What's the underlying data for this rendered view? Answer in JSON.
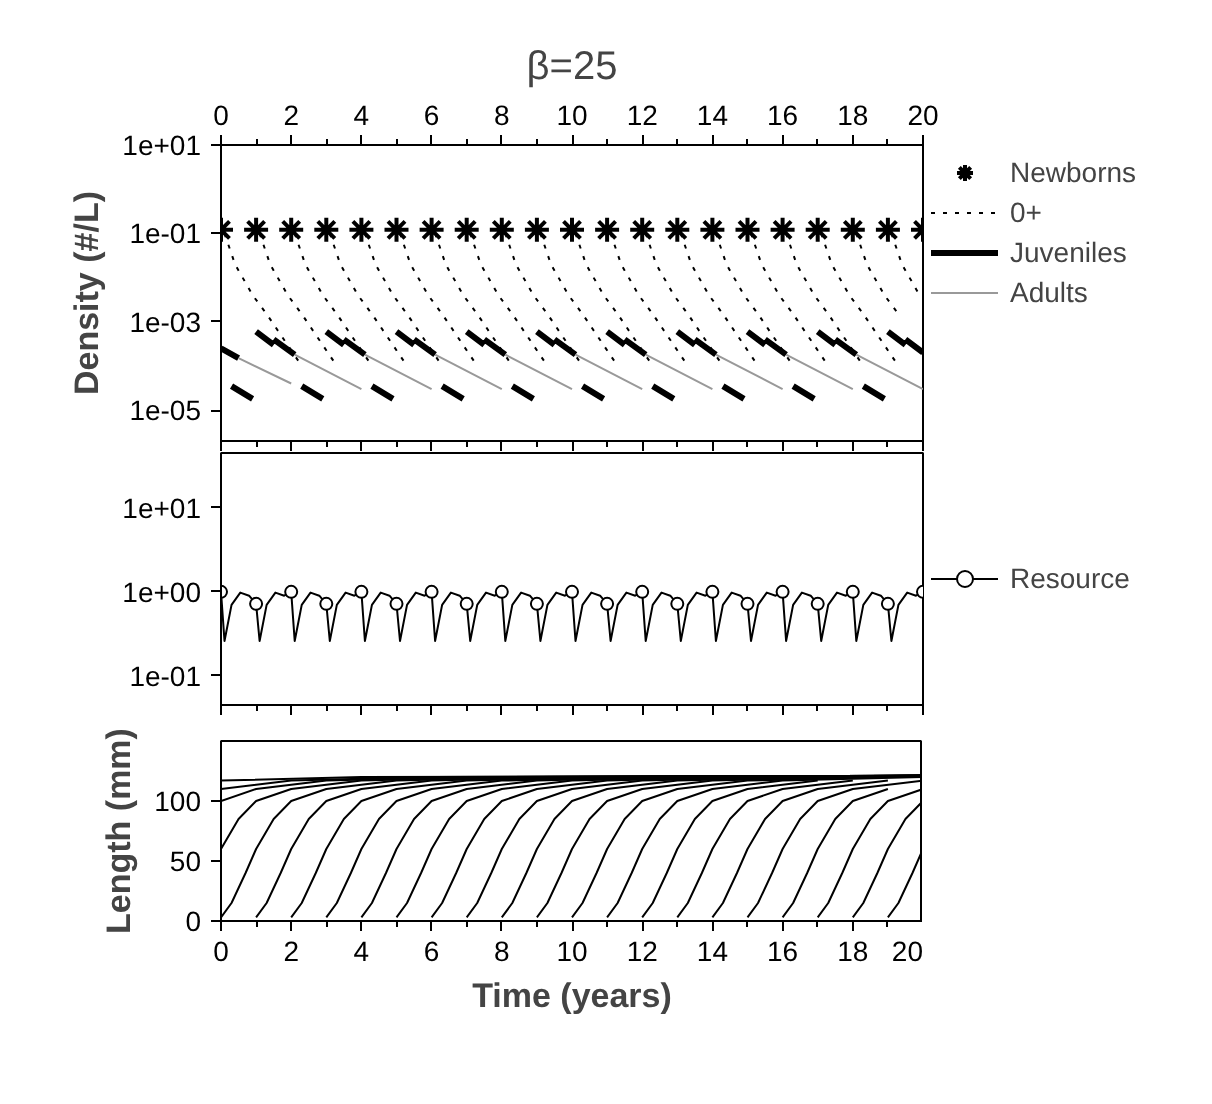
{
  "chart_data": [
    {
      "type": "line",
      "title": "β=25",
      "ylabel": "Density (#/L)",
      "log": "y",
      "legend": "right",
      "tick_labels": "y",
      "xlim": [
        0,
        20
      ],
      "xticks": [
        0,
        {
          "value": 1,
          "label": null
        },
        2,
        {
          "value": 3,
          "label": null
        },
        4,
        {
          "value": 5,
          "label": null
        },
        6,
        {
          "value": 7,
          "label": null
        },
        8,
        {
          "value": 9,
          "label": null
        },
        10,
        {
          "value": 11,
          "label": null
        },
        12,
        {
          "value": 13,
          "label": null
        },
        14,
        {
          "value": 15,
          "label": null
        },
        16,
        {
          "value": 17,
          "label": null
        },
        18,
        {
          "value": 19,
          "label": null
        },
        20
      ],
      "x2lim": [
        0,
        20
      ],
      "x2ticks": [
        0,
        {
          "value": 1,
          "label": null
        },
        2,
        {
          "value": 3,
          "label": null
        },
        4,
        {
          "value": 5,
          "label": null
        },
        6,
        {
          "value": 7,
          "label": null
        },
        8,
        {
          "value": 9,
          "label": null
        },
        10,
        {
          "value": 11,
          "label": null
        },
        12,
        {
          "value": 13,
          "label": null
        },
        14,
        {
          "value": 15,
          "label": null
        },
        16,
        {
          "value": 17,
          "label": null
        },
        18,
        {
          "value": 19,
          "label": null
        },
        20
      ],
      "ylim": [
        2e-06,
        10
      ],
      "yticks": [
        {
          "value": 10,
          "label": "1e+01"
        },
        {
          "value": 0.1,
          "label": "1e-01"
        },
        {
          "value": 0.001,
          "label": "1e-03"
        },
        {
          "value": 1e-05,
          "label": "1e-05"
        }
      ],
      "series": [
        {
          "name": "Newborns",
          "type": "scatter",
          "marker": "cross",
          "color": "#000000",
          "x": [
            0,
            1,
            2,
            3,
            4,
            5,
            6,
            7,
            8,
            9,
            10,
            11,
            12,
            13,
            14,
            15,
            16,
            17,
            18,
            19,
            20
          ],
          "values": [
            0.12,
            0.12,
            0.12,
            0.12,
            0.12,
            0.12,
            0.12,
            0.12,
            0.12,
            0.12,
            0.12,
            0.12,
            0.12,
            0.12,
            0.12,
            0.12,
            0.12,
            0.12,
            0.12,
            0.12,
            0.12
          ]
        },
        {
          "name": "0+",
          "type": "line",
          "line_style": "dotted",
          "color": "#000000",
          "x": [
            0.1,
            0.4,
            0.9,
            1.3,
            2.3,
            null,
            1.1,
            1.4,
            1.9,
            2.3,
            3.3,
            null,
            2.1,
            2.4,
            2.9,
            3.3,
            4.3,
            null,
            3.1,
            3.4,
            3.9,
            4.3,
            5.3,
            null,
            4.1,
            4.4,
            4.9,
            5.3,
            6.3,
            null,
            5.1,
            5.4,
            5.9,
            6.3,
            7.3,
            null,
            6.1,
            6.4,
            6.9,
            7.3,
            8.3,
            null,
            7.1,
            7.4,
            7.9,
            8.3,
            9.3,
            null,
            8.1,
            8.4,
            8.9,
            9.3,
            10.3,
            null,
            9.1,
            9.4,
            9.9,
            10.3,
            11.3,
            null,
            10.1,
            10.4,
            10.9,
            11.3,
            12.3,
            null,
            11.1,
            11.4,
            11.9,
            12.3,
            13.3,
            null,
            12.1,
            12.4,
            12.9,
            13.3,
            14.3,
            null,
            13.1,
            13.4,
            13.9,
            14.3,
            15.3,
            null,
            14.1,
            14.4,
            14.9,
            15.3,
            16.3,
            null,
            15.1,
            15.4,
            15.9,
            16.3,
            17.3,
            null,
            16.1,
            16.4,
            16.9,
            17.3,
            18.3,
            null,
            17.1,
            17.4,
            17.9,
            18.3,
            19.3,
            null,
            18.1,
            18.4,
            18.9,
            19.3,
            null,
            19.1,
            19.4,
            19.9
          ],
          "values": [
            0.1,
            0.02,
            0.004,
            0.0015,
            0.0001,
            null,
            0.1,
            0.02,
            0.004,
            0.0015,
            0.0001,
            null,
            0.1,
            0.02,
            0.004,
            0.0015,
            0.0001,
            null,
            0.1,
            0.02,
            0.004,
            0.0015,
            0.0001,
            null,
            0.1,
            0.02,
            0.004,
            0.0015,
            0.0001,
            null,
            0.1,
            0.02,
            0.004,
            0.0015,
            0.0001,
            null,
            0.1,
            0.02,
            0.004,
            0.0015,
            0.0001,
            null,
            0.1,
            0.02,
            0.004,
            0.0015,
            0.0001,
            null,
            0.1,
            0.02,
            0.004,
            0.0015,
            0.0001,
            null,
            0.1,
            0.02,
            0.004,
            0.0015,
            0.0001,
            null,
            0.1,
            0.02,
            0.004,
            0.0015,
            0.0001,
            null,
            0.1,
            0.02,
            0.004,
            0.0015,
            0.0001,
            null,
            0.1,
            0.02,
            0.004,
            0.0015,
            0.0001,
            null,
            0.1,
            0.02,
            0.004,
            0.0015,
            0.0001,
            null,
            0.1,
            0.02,
            0.004,
            0.0015,
            0.0001,
            null,
            0.1,
            0.02,
            0.004,
            0.0015,
            0.0001,
            null,
            0.1,
            0.02,
            0.004,
            0.0015,
            0.0001,
            null,
            0.1,
            0.02,
            0.004,
            0.0015,
            0.0001,
            null,
            0.1,
            0.02,
            0.004,
            0.0015,
            null,
            0.1,
            0.02,
            0.004
          ]
        },
        {
          "name": "Juveniles",
          "type": "line",
          "color": "#000000",
          "x": [
            0,
            0.5,
            null,
            1,
            1.5,
            null,
            1.5,
            2.1,
            null,
            3,
            3.5,
            null,
            3.5,
            4.1,
            null,
            5,
            5.5,
            null,
            5.5,
            6.1,
            null,
            7,
            7.5,
            null,
            7.5,
            8.1,
            null,
            9,
            9.5,
            null,
            9.5,
            10.1,
            null,
            11,
            11.5,
            null,
            11.5,
            12.1,
            null,
            13,
            13.5,
            null,
            13.5,
            14.1,
            null,
            15,
            15.5,
            null,
            15.5,
            16.1,
            null,
            17,
            17.5,
            null,
            17.5,
            18.1,
            null,
            19,
            19.5,
            null,
            19.5,
            20,
            null,
            0.3,
            0.9,
            null,
            2.3,
            2.9,
            null,
            4.3,
            4.9,
            null,
            6.3,
            6.9,
            null,
            8.3,
            8.9,
            null,
            10.3,
            10.9,
            null,
            12.3,
            12.9,
            null,
            14.3,
            14.9,
            null,
            16.3,
            16.9,
            null,
            18.3,
            18.9
          ],
          "values": [
            0.00025,
            0.00015,
            null,
            0.0006,
            0.0003,
            null,
            0.0004,
            0.00018,
            null,
            0.0006,
            0.0003,
            null,
            0.0004,
            0.00018,
            null,
            0.0006,
            0.0003,
            null,
            0.0004,
            0.00018,
            null,
            0.0006,
            0.0003,
            null,
            0.0004,
            0.00018,
            null,
            0.0006,
            0.0003,
            null,
            0.0004,
            0.00018,
            null,
            0.0006,
            0.0003,
            null,
            0.0004,
            0.00018,
            null,
            0.0006,
            0.0003,
            null,
            0.0004,
            0.00018,
            null,
            0.0006,
            0.0003,
            null,
            0.0004,
            0.00018,
            null,
            0.0006,
            0.0003,
            null,
            0.0004,
            0.00018,
            null,
            0.0006,
            0.0003,
            null,
            0.0004,
            0.0002,
            null,
            3.5e-05,
            1.8e-05,
            null,
            3.5e-05,
            1.8e-05,
            null,
            3.5e-05,
            1.8e-05,
            null,
            3.5e-05,
            1.8e-05,
            null,
            3.5e-05,
            1.8e-05,
            null,
            3.5e-05,
            1.8e-05,
            null,
            3.5e-05,
            1.8e-05,
            null,
            3.5e-05,
            1.8e-05,
            null,
            3.5e-05,
            1.8e-05,
            null,
            3.5e-05,
            1.8e-05
          ]
        },
        {
          "name": "Adults",
          "type": "line",
          "color": "#999999",
          "x": [
            0.5,
            2,
            null,
            2.1,
            4,
            null,
            4.1,
            6,
            null,
            6.1,
            8,
            null,
            8.1,
            10,
            null,
            10.1,
            12,
            null,
            12.1,
            14,
            null,
            14.1,
            16,
            null,
            16.1,
            18,
            null,
            18.1,
            20
          ],
          "values": [
            0.00015,
            4e-05,
            null,
            0.00018,
            3e-05,
            null,
            0.00018,
            3e-05,
            null,
            0.00018,
            3e-05,
            null,
            0.00018,
            3e-05,
            null,
            0.00018,
            3e-05,
            null,
            0.00018,
            3e-05,
            null,
            0.00018,
            3e-05,
            null,
            0.00018,
            3e-05,
            null,
            0.00018,
            3e-05
          ]
        }
      ]
    },
    {
      "type": "line",
      "log": "y",
      "legend": "right",
      "tick_labels": "y",
      "xlim": [
        0,
        20
      ],
      "xticks": [
        0,
        {
          "value": 1,
          "label": null
        },
        2,
        {
          "value": 3,
          "label": null
        },
        4,
        {
          "value": 5,
          "label": null
        },
        6,
        {
          "value": 7,
          "label": null
        },
        8,
        {
          "value": 9,
          "label": null
        },
        10,
        {
          "value": 11,
          "label": null
        },
        12,
        {
          "value": 13,
          "label": null
        },
        14,
        {
          "value": 15,
          "label": null
        },
        16,
        {
          "value": 17,
          "label": null
        },
        18,
        {
          "value": 19,
          "label": null
        },
        20
      ],
      "ylim": [
        0.045,
        45
      ],
      "yticks": [
        {
          "value": 10,
          "label": "1e+01"
        },
        {
          "value": 1,
          "label": "1e+00"
        },
        {
          "value": 0.1,
          "label": "1e-01"
        }
      ],
      "series": [
        {
          "name": "Resource",
          "type": "line",
          "color": "#000000",
          "x": [
            0,
            0.1,
            0.3,
            0.55,
            0.8,
            1,
            1.1,
            1.3,
            1.55,
            1.8,
            2,
            2.1,
            2.3,
            2.55,
            2.8,
            3,
            3.1,
            3.3,
            3.55,
            3.8,
            4,
            4.1,
            4.3,
            4.55,
            4.8,
            5,
            5.1,
            5.3,
            5.55,
            5.8,
            6,
            6.1,
            6.3,
            6.55,
            6.8,
            7,
            7.1,
            7.3,
            7.55,
            7.8,
            8,
            8.1,
            8.3,
            8.55,
            8.8,
            9,
            9.1,
            9.3,
            9.55,
            9.8,
            10,
            10.1,
            10.3,
            10.55,
            10.8,
            11,
            11.1,
            11.3,
            11.55,
            11.8,
            12,
            12.1,
            12.3,
            12.55,
            12.8,
            13,
            13.1,
            13.3,
            13.55,
            13.8,
            14,
            14.1,
            14.3,
            14.55,
            14.8,
            15,
            15.1,
            15.3,
            15.55,
            15.8,
            16,
            16.1,
            16.3,
            16.55,
            16.8,
            17,
            17.1,
            17.3,
            17.55,
            17.8,
            18,
            18.1,
            18.3,
            18.55,
            18.8,
            19,
            19.1,
            19.3,
            19.55,
            19.8,
            20
          ],
          "values": [
            1.0,
            0.26,
            0.7,
            0.98,
            0.9,
            0.72,
            0.26,
            0.7,
            0.98,
            0.9,
            1.0,
            0.26,
            0.7,
            0.98,
            0.9,
            0.72,
            0.26,
            0.7,
            0.98,
            0.9,
            1.0,
            0.26,
            0.7,
            0.98,
            0.9,
            0.72,
            0.26,
            0.7,
            0.98,
            0.9,
            1.0,
            0.26,
            0.7,
            0.98,
            0.9,
            0.72,
            0.26,
            0.7,
            0.98,
            0.9,
            1.0,
            0.26,
            0.7,
            0.98,
            0.9,
            0.72,
            0.26,
            0.7,
            0.98,
            0.9,
            1.0,
            0.26,
            0.7,
            0.98,
            0.9,
            0.72,
            0.26,
            0.7,
            0.98,
            0.9,
            1.0,
            0.26,
            0.7,
            0.98,
            0.9,
            0.72,
            0.26,
            0.7,
            0.98,
            0.9,
            1.0,
            0.26,
            0.7,
            0.98,
            0.9,
            0.72,
            0.26,
            0.7,
            0.98,
            0.9,
            1.0,
            0.26,
            0.7,
            0.98,
            0.9,
            0.72,
            0.26,
            0.7,
            0.98,
            0.9,
            1.0,
            0.26,
            0.7,
            0.98,
            0.9,
            0.72,
            0.26,
            0.7,
            0.98,
            0.9,
            1.0
          ]
        },
        {
          "type": "scatter",
          "marker": "circle",
          "color": "#000000",
          "x": [
            0,
            1,
            2,
            3,
            4,
            5,
            6,
            7,
            8,
            9,
            10,
            11,
            12,
            13,
            14,
            15,
            16,
            17,
            18,
            19,
            20
          ],
          "values": [
            1.0,
            0.72,
            1.0,
            0.72,
            1.0,
            0.72,
            1.0,
            0.72,
            1.0,
            0.72,
            1.0,
            0.72,
            1.0,
            0.72,
            1.0,
            0.72,
            1.0,
            0.72,
            1.0,
            0.72,
            1.0
          ]
        }
      ]
    },
    {
      "type": "line",
      "xlabel": "Time (years)",
      "ylabel": "Length (mm)",
      "xlim": [
        0,
        20
      ],
      "xticks": [
        0,
        {
          "value": 1,
          "label": null
        },
        2,
        {
          "value": 3,
          "label": null
        },
        4,
        {
          "value": 5,
          "label": null
        },
        6,
        {
          "value": 7,
          "label": null
        },
        8,
        {
          "value": 9,
          "label": null
        },
        10,
        {
          "value": 11,
          "label": null
        },
        12,
        {
          "value": 13,
          "label": null
        },
        14,
        {
          "value": 15,
          "label": null
        },
        16,
        {
          "value": 17,
          "label": null
        },
        18,
        {
          "value": 19,
          "label": null
        },
        20
      ],
      "ylim": [
        0,
        150
      ],
      "yticks": [
        0,
        50,
        100
      ],
      "series": [
        {
          "color": "#000000",
          "x": [
            0,
            0.5,
            1,
            2,
            4,
            8,
            20
          ],
          "values": [
            60,
            85,
            100,
            110,
            117,
            120,
            121
          ]
        },
        {
          "color": "#000000",
          "x": [
            0,
            1,
            3,
            7,
            20
          ],
          "values": [
            100,
            110,
            117,
            120,
            121
          ]
        },
        {
          "color": "#000000",
          "x": [
            0,
            2,
            6,
            20
          ],
          "values": [
            110,
            117,
            120,
            121
          ]
        },
        {
          "color": "#000000",
          "x": [
            0,
            4,
            20
          ],
          "values": [
            117,
            120,
            121
          ]
        },
        {
          "color": "#000000",
          "x": [
            0,
            0.3,
            0.7,
            1,
            1.5,
            2,
            3,
            5,
            9,
            20
          ],
          "values": [
            3,
            15,
            40,
            60,
            85,
            100,
            110,
            117,
            120,
            121
          ]
        },
        {
          "color": "#000000",
          "x": [
            1,
            1.3,
            1.7,
            2,
            2.5,
            3,
            4,
            6,
            10,
            20
          ],
          "values": [
            3,
            15,
            40,
            60,
            85,
            100,
            110,
            117,
            120,
            121
          ]
        },
        {
          "color": "#000000",
          "x": [
            2,
            2.3,
            2.7,
            3,
            3.5,
            4,
            5,
            7,
            11,
            20
          ],
          "values": [
            3,
            15,
            40,
            60,
            85,
            100,
            110,
            117,
            120,
            121
          ]
        },
        {
          "color": "#000000",
          "x": [
            3,
            3.3,
            3.7,
            4,
            4.5,
            5,
            6,
            8,
            12,
            20
          ],
          "values": [
            3,
            15,
            40,
            60,
            85,
            100,
            110,
            117,
            120,
            121
          ]
        },
        {
          "color": "#000000",
          "x": [
            4,
            4.3,
            4.7,
            5,
            5.5,
            6,
            7,
            9,
            13,
            20
          ],
          "values": [
            3,
            15,
            40,
            60,
            85,
            100,
            110,
            117,
            120,
            121
          ]
        },
        {
          "color": "#000000",
          "x": [
            5,
            5.3,
            5.7,
            6,
            6.5,
            7,
            8,
            10,
            14,
            20
          ],
          "values": [
            3,
            15,
            40,
            60,
            85,
            100,
            110,
            117,
            120,
            121
          ]
        },
        {
          "color": "#000000",
          "x": [
            6,
            6.3,
            6.7,
            7,
            7.5,
            8,
            9,
            11,
            15,
            20
          ],
          "values": [
            3,
            15,
            40,
            60,
            85,
            100,
            110,
            117,
            120,
            121
          ]
        },
        {
          "color": "#000000",
          "x": [
            7,
            7.3,
            7.7,
            8,
            8.5,
            9,
            10,
            12,
            16,
            20
          ],
          "values": [
            3,
            15,
            40,
            60,
            85,
            100,
            110,
            117,
            120,
            121
          ]
        },
        {
          "color": "#000000",
          "x": [
            8,
            8.3,
            8.7,
            9,
            9.5,
            10,
            11,
            13,
            17,
            20
          ],
          "values": [
            3,
            15,
            40,
            60,
            85,
            100,
            110,
            117,
            120,
            121
          ]
        },
        {
          "color": "#000000",
          "x": [
            9,
            9.3,
            9.7,
            10,
            10.5,
            11,
            12,
            14,
            18,
            20
          ],
          "values": [
            3,
            15,
            40,
            60,
            85,
            100,
            110,
            117,
            120,
            121
          ]
        },
        {
          "color": "#000000",
          "x": [
            10,
            10.3,
            10.7,
            11,
            11.5,
            12,
            13,
            15,
            19,
            20
          ],
          "values": [
            3,
            15,
            40,
            60,
            85,
            100,
            110,
            117,
            120,
            121
          ]
        },
        {
          "color": "#000000",
          "x": [
            11,
            11.3,
            11.7,
            12,
            12.5,
            13,
            14,
            16,
            20
          ],
          "values": [
            3,
            15,
            40,
            60,
            85,
            100,
            110,
            117,
            120
          ]
        },
        {
          "color": "#000000",
          "x": [
            12,
            12.3,
            12.7,
            13,
            13.5,
            14,
            15,
            17
          ],
          "values": [
            3,
            15,
            40,
            60,
            85,
            100,
            110,
            117
          ]
        },
        {
          "color": "#000000",
          "x": [
            13,
            13.3,
            13.7,
            14,
            14.5,
            15,
            16,
            18
          ],
          "values": [
            3,
            15,
            40,
            60,
            85,
            100,
            110,
            117
          ]
        },
        {
          "color": "#000000",
          "x": [
            14,
            14.3,
            14.7,
            15,
            15.5,
            16,
            17,
            19
          ],
          "values": [
            3,
            15,
            40,
            60,
            85,
            100,
            110,
            117
          ]
        },
        {
          "color": "#000000",
          "x": [
            15,
            15.3,
            15.7,
            16,
            16.5,
            17,
            18,
            20
          ],
          "values": [
            3,
            15,
            40,
            60,
            85,
            100,
            110,
            117
          ]
        },
        {
          "color": "#000000",
          "x": [
            16,
            16.3,
            16.7,
            17,
            17.5,
            18,
            19
          ],
          "values": [
            3,
            15,
            40,
            60,
            85,
            100,
            110
          ]
        },
        {
          "color": "#000000",
          "x": [
            17,
            17.3,
            17.7,
            18,
            18.5,
            19,
            20
          ],
          "values": [
            3,
            15,
            40,
            60,
            85,
            100,
            110
          ]
        },
        {
          "color": "#000000",
          "x": [
            18,
            18.3,
            18.7,
            19,
            19.5,
            20
          ],
          "values": [
            3,
            15,
            40,
            60,
            85,
            100
          ]
        },
        {
          "color": "#000000",
          "x": [
            19,
            19.3,
            19.7,
            20
          ],
          "values": [
            3,
            15,
            40,
            60
          ]
        }
      ]
    }
  ]
}
